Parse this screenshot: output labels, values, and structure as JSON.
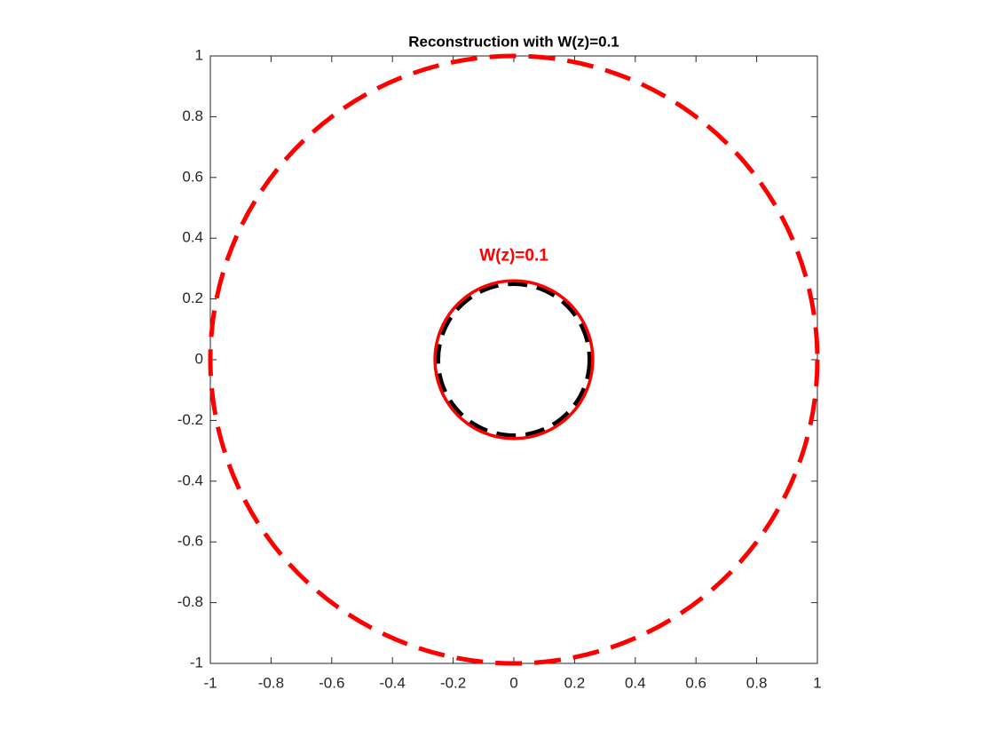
{
  "chart_data": {
    "type": "circles",
    "title": "Reconstruction with W(z)=0.1",
    "xlim": [
      -1,
      1
    ],
    "ylim": [
      -1,
      1
    ],
    "xticks": [
      -1,
      -0.8,
      -0.6,
      -0.4,
      -0.2,
      0,
      0.2,
      0.4,
      0.6,
      0.8,
      1
    ],
    "yticks": [
      -1,
      -0.8,
      -0.6,
      -0.4,
      -0.2,
      0,
      0.2,
      0.4,
      0.6,
      0.8,
      1
    ],
    "box": true,
    "series": [
      {
        "color": "#ff0000",
        "linestyle": "--",
        "center": [
          0,
          0
        ],
        "radius": 1
      },
      {
        "color": "#000000",
        "linestyle": "--",
        "center": [
          0,
          0
        ],
        "radius": 0.25
      },
      {
        "color": "#ff0000",
        "linestyle": "-",
        "center": [
          0,
          0
        ],
        "radius": 0.26
      }
    ],
    "annotations": [
      {
        "text": "W(z)=0.1",
        "x": 0,
        "y": 0.34,
        "color": "#ff0000"
      }
    ]
  }
}
